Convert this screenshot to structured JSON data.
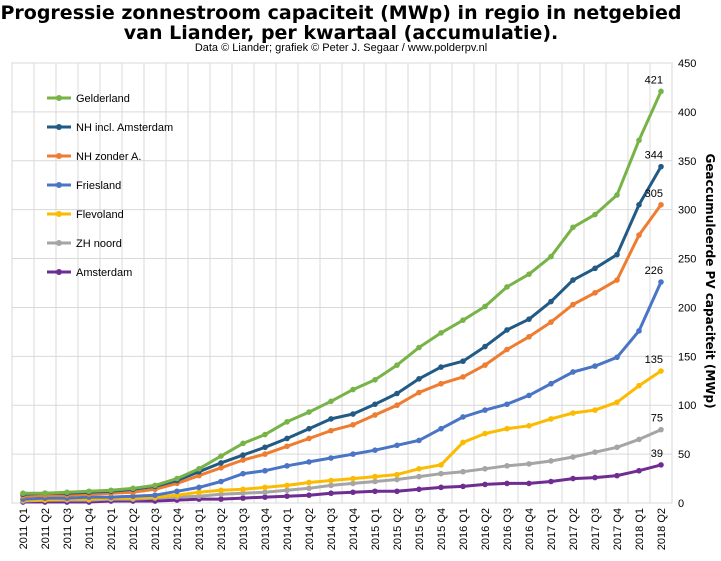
{
  "chart_data": {
    "type": "line",
    "title_line1": "Progressie zonnestroom capaciteit (MWp) in regio in netgebied",
    "title_line2": "van Liander, per kwartaal (accumulatie).",
    "subtitle": "Data © Liander; grafiek © Peter J. Segaar / www.polderpv.nl",
    "ylabel": "Geaccumuleerde PV capaciteit (MWp)",
    "xlabel": "",
    "ylim": [
      0,
      450
    ],
    "yticks": [
      0,
      50,
      100,
      150,
      200,
      250,
      300,
      350,
      400,
      450
    ],
    "grid": true,
    "legend_position": "top-left",
    "categories": [
      "2011 Q1",
      "2011 Q2",
      "2011 Q3",
      "2011 Q4",
      "2012 Q1",
      "2012 Q2",
      "2012 Q3",
      "2012 Q4",
      "2013 Q1",
      "2013 Q2",
      "2013 Q3",
      "2013 Q4",
      "2014 Q1",
      "2014 Q2",
      "2014 Q3",
      "2014 Q4",
      "2015 Q1",
      "2015 Q2",
      "2015 Q3",
      "2015 Q4",
      "2016 Q1",
      "2016 Q2",
      "2016 Q3",
      "2016 Q4",
      "2017 Q1",
      "2017 Q2",
      "2017 Q3",
      "2017 Q4",
      "2018 Q1",
      "2018 Q2"
    ],
    "series": [
      {
        "name": "Gelderland",
        "color": "#77b347",
        "end_label": "421",
        "values": [
          10,
          10,
          11,
          12,
          13,
          15,
          18,
          25,
          35,
          48,
          61,
          70,
          83,
          93,
          104,
          116,
          126,
          141,
          159,
          174,
          187,
          201,
          221,
          234,
          252,
          282,
          295,
          315,
          371,
          421
        ]
      },
      {
        "name": "NH incl. Amsterdam",
        "color": "#215a84",
        "end_label": "344",
        "values": [
          9,
          10,
          10,
          11,
          12,
          14,
          17,
          23,
          32,
          41,
          49,
          57,
          66,
          76,
          86,
          91,
          101,
          112,
          127,
          139,
          145,
          160,
          177,
          188,
          206,
          228,
          240,
          254,
          305,
          344
        ]
      },
      {
        "name": "NH zonder A.",
        "color": "#ee7c31",
        "end_label": "305",
        "values": [
          7,
          8,
          8,
          9,
          10,
          11,
          14,
          20,
          28,
          36,
          44,
          50,
          58,
          66,
          74,
          80,
          90,
          100,
          113,
          122,
          129,
          141,
          157,
          170,
          185,
          203,
          215,
          228,
          274,
          305
        ]
      },
      {
        "name": "Friesland",
        "color": "#4a74c4",
        "end_label": "226",
        "values": [
          4,
          5,
          5,
          6,
          6,
          7,
          8,
          12,
          16,
          22,
          30,
          33,
          38,
          42,
          46,
          50,
          54,
          59,
          64,
          76,
          88,
          95,
          101,
          110,
          122,
          134,
          140,
          149,
          176,
          226
        ]
      },
      {
        "name": "Flevoland",
        "color": "#fbbb00",
        "end_label": "135",
        "values": [
          3,
          3,
          4,
          4,
          5,
          5,
          6,
          8,
          11,
          13,
          14,
          16,
          18,
          21,
          23,
          25,
          27,
          29,
          35,
          39,
          62,
          71,
          76,
          79,
          86,
          92,
          95,
          103,
          120,
          135
        ]
      },
      {
        "name": "ZH noord",
        "color": "#a5a5a5",
        "end_label": "75",
        "values": [
          2,
          3,
          3,
          3,
          4,
          4,
          5,
          6,
          7,
          9,
          10,
          11,
          13,
          15,
          18,
          20,
          22,
          24,
          27,
          30,
          32,
          35,
          38,
          40,
          43,
          47,
          52,
          57,
          65,
          75
        ]
      },
      {
        "name": "Amsterdam",
        "color": "#6f2c91",
        "end_label": "39",
        "values": [
          1,
          1,
          1,
          1,
          2,
          2,
          2,
          3,
          4,
          4,
          5,
          6,
          7,
          8,
          10,
          11,
          12,
          12,
          14,
          16,
          17,
          19,
          20,
          20,
          22,
          25,
          26,
          28,
          33,
          39
        ]
      }
    ]
  }
}
